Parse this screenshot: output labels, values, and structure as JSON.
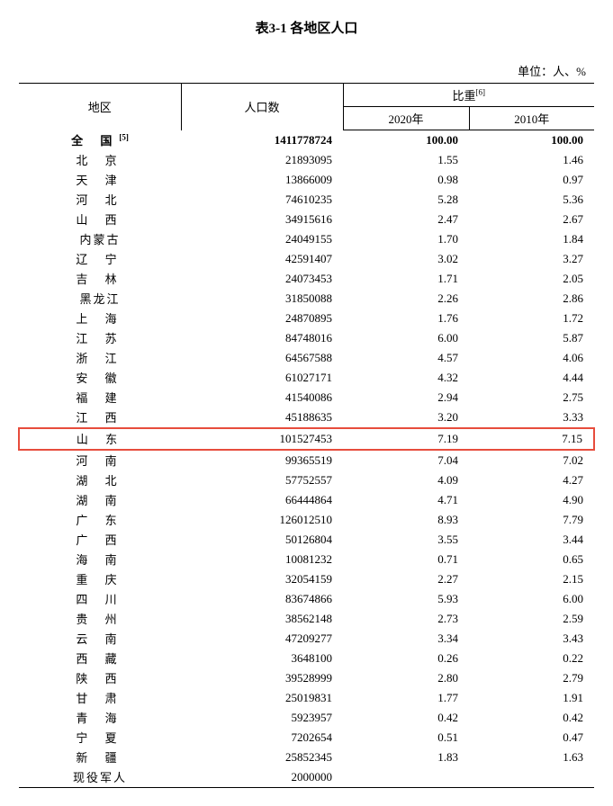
{
  "title": "表3-1 各地区人口",
  "unit_label": "单位：人、%",
  "headers": {
    "region": "地区",
    "population": "人口数",
    "share": "比重",
    "share_sup": "[6]",
    "y2020": "2020年",
    "y2010": "2010年"
  },
  "total_row": {
    "region": "全 国",
    "region_sup": "[5]",
    "population": "1411778724",
    "y2020": "100.00",
    "y2010": "100.00"
  },
  "rows": [
    {
      "region": "北 京",
      "population": "21893095",
      "y2020": "1.55",
      "y2010": "1.46"
    },
    {
      "region": "天 津",
      "population": "13866009",
      "y2020": "0.98",
      "y2010": "0.97"
    },
    {
      "region": "河 北",
      "population": "74610235",
      "y2020": "5.28",
      "y2010": "5.36"
    },
    {
      "region": "山 西",
      "population": "34915616",
      "y2020": "2.47",
      "y2010": "2.67"
    },
    {
      "region": "内蒙古",
      "population": "24049155",
      "y2020": "1.70",
      "y2010": "1.84"
    },
    {
      "region": "辽 宁",
      "population": "42591407",
      "y2020": "3.02",
      "y2010": "3.27"
    },
    {
      "region": "吉 林",
      "population": "24073453",
      "y2020": "1.71",
      "y2010": "2.05"
    },
    {
      "region": "黑龙江",
      "population": "31850088",
      "y2020": "2.26",
      "y2010": "2.86"
    },
    {
      "region": "上 海",
      "population": "24870895",
      "y2020": "1.76",
      "y2010": "1.72"
    },
    {
      "region": "江 苏",
      "population": "84748016",
      "y2020": "6.00",
      "y2010": "5.87"
    },
    {
      "region": "浙 江",
      "population": "64567588",
      "y2020": "4.57",
      "y2010": "4.06"
    },
    {
      "region": "安 徽",
      "population": "61027171",
      "y2020": "4.32",
      "y2010": "4.44"
    },
    {
      "region": "福 建",
      "population": "41540086",
      "y2020": "2.94",
      "y2010": "2.75"
    },
    {
      "region": "江 西",
      "population": "45188635",
      "y2020": "3.20",
      "y2010": "3.33"
    },
    {
      "region": "山 东",
      "population": "101527453",
      "y2020": "7.19",
      "y2010": "7.15",
      "highlight": true
    },
    {
      "region": "河 南",
      "population": "99365519",
      "y2020": "7.04",
      "y2010": "7.02"
    },
    {
      "region": "湖 北",
      "population": "57752557",
      "y2020": "4.09",
      "y2010": "4.27"
    },
    {
      "region": "湖 南",
      "population": "66444864",
      "y2020": "4.71",
      "y2010": "4.90"
    },
    {
      "region": "广 东",
      "population": "126012510",
      "y2020": "8.93",
      "y2010": "7.79"
    },
    {
      "region": "广 西",
      "population": "50126804",
      "y2020": "3.55",
      "y2010": "3.44"
    },
    {
      "region": "海 南",
      "population": "10081232",
      "y2020": "0.71",
      "y2010": "0.65"
    },
    {
      "region": "重 庆",
      "population": "32054159",
      "y2020": "2.27",
      "y2010": "2.15"
    },
    {
      "region": "四 川",
      "population": "83674866",
      "y2020": "5.93",
      "y2010": "6.00"
    },
    {
      "region": "贵 州",
      "population": "38562148",
      "y2020": "2.73",
      "y2010": "2.59"
    },
    {
      "region": "云 南",
      "population": "47209277",
      "y2020": "3.34",
      "y2010": "3.43"
    },
    {
      "region": "西 藏",
      "population": "3648100",
      "y2020": "0.26",
      "y2010": "0.22"
    },
    {
      "region": "陕 西",
      "population": "39528999",
      "y2020": "2.80",
      "y2010": "2.79"
    },
    {
      "region": "甘 肃",
      "population": "25019831",
      "y2020": "1.77",
      "y2010": "1.91"
    },
    {
      "region": "青 海",
      "population": "5923957",
      "y2020": "0.42",
      "y2010": "0.42"
    },
    {
      "region": "宁 夏",
      "population": "7202654",
      "y2020": "0.51",
      "y2010": "0.47"
    },
    {
      "region": "新 疆",
      "population": "25852345",
      "y2020": "1.83",
      "y2010": "1.63"
    },
    {
      "region": "现役军人",
      "population": "2000000",
      "y2020": "",
      "y2010": ""
    }
  ],
  "style": {
    "highlight_color": "#e74c3c",
    "border_color": "#000000",
    "background_color": "#ffffff",
    "text_color": "#000000",
    "font_family": "SimSun",
    "title_fontsize": 15,
    "body_fontsize": 13
  }
}
